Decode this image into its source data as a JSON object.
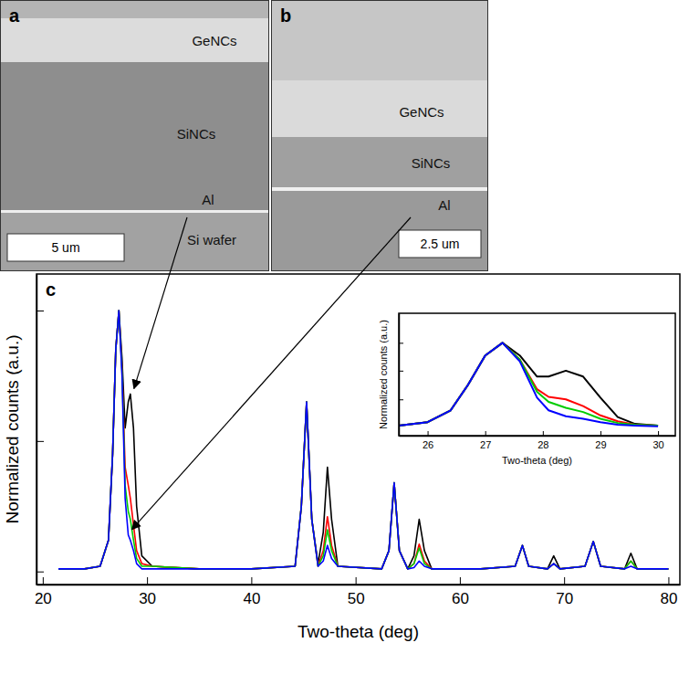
{
  "sem_images": [
    {
      "letter": "a",
      "layers": [
        "GeNCs",
        "SiNCs",
        "Al",
        "Si wafer"
      ],
      "scale_bar": "5 um"
    },
    {
      "letter": "b",
      "layers": [
        "GeNCs",
        "SiNCs",
        "Al"
      ],
      "scale_bar": "2.5 um"
    }
  ],
  "chart_data": [
    {
      "type": "line",
      "panel_label": "c",
      "x_label": "Two-theta (deg)",
      "y_label": "Normalized counts (a.u.)",
      "xlim": [
        19.4,
        81.1
      ],
      "xticks": [
        20,
        30,
        40,
        50,
        60,
        70,
        80
      ],
      "ylim": [
        -0.05,
        1.14
      ],
      "yticks": [
        0,
        0.5,
        1
      ],
      "tick_labels": "x",
      "x": [
        21.5,
        24,
        25.5,
        26.3,
        26.7,
        27.0,
        27.3,
        27.6,
        27.9,
        28.2,
        28.4,
        28.7,
        29.0,
        29.5,
        30.5,
        35,
        40,
        44.2,
        44.8,
        45.3,
        45.8,
        46.4,
        46.9,
        47.3,
        47.7,
        48.3,
        52.5,
        53.2,
        53.7,
        54.2,
        55.0,
        55.6,
        56.1,
        56.6,
        57.3,
        62,
        65.3,
        66.0,
        66.6,
        68.4,
        69.0,
        69.6,
        72.0,
        72.8,
        73.5,
        75.8,
        76.4,
        77.0,
        80
      ],
      "series": [
        {
          "color": "#000000",
          "values": [
            0.01,
            0.01,
            0.02,
            0.12,
            0.45,
            0.85,
            1.0,
            0.82,
            0.55,
            0.65,
            0.68,
            0.55,
            0.25,
            0.06,
            0.02,
            0.01,
            0.01,
            0.02,
            0.25,
            0.65,
            0.2,
            0.03,
            0.15,
            0.4,
            0.2,
            0.02,
            0.01,
            0.08,
            0.34,
            0.08,
            0.01,
            0.06,
            0.2,
            0.08,
            0.01,
            0.01,
            0.02,
            0.1,
            0.02,
            0.01,
            0.06,
            0.01,
            0.02,
            0.115,
            0.02,
            0.01,
            0.07,
            0.01,
            0.01
          ]
        },
        {
          "color": "#ff0000",
          "values": [
            0.01,
            0.01,
            0.02,
            0.12,
            0.45,
            0.85,
            1.0,
            0.78,
            0.4,
            0.33,
            0.28,
            0.18,
            0.08,
            0.03,
            0.02,
            0.01,
            0.01,
            0.02,
            0.25,
            0.65,
            0.2,
            0.02,
            0.08,
            0.21,
            0.1,
            0.02,
            0.01,
            0.08,
            0.34,
            0.08,
            0.01,
            0.03,
            0.105,
            0.04,
            0.01,
            0.01,
            0.02,
            0.1,
            0.02,
            0.01,
            0.03,
            0.01,
            0.02,
            0.115,
            0.02,
            0.01,
            0.04,
            0.01,
            0.01
          ]
        },
        {
          "color": "#00cc00",
          "values": [
            0.01,
            0.01,
            0.02,
            0.12,
            0.45,
            0.85,
            1.0,
            0.77,
            0.33,
            0.23,
            0.2,
            0.12,
            0.05,
            0.02,
            0.02,
            0.01,
            0.01,
            0.02,
            0.25,
            0.65,
            0.2,
            0.02,
            0.06,
            0.16,
            0.08,
            0.02,
            0.01,
            0.08,
            0.34,
            0.08,
            0.01,
            0.03,
            0.09,
            0.03,
            0.01,
            0.01,
            0.02,
            0.1,
            0.02,
            0.01,
            0.03,
            0.01,
            0.02,
            0.115,
            0.02,
            0.01,
            0.04,
            0.01,
            0.01
          ]
        },
        {
          "color": "#0000ff",
          "values": [
            0.01,
            0.01,
            0.02,
            0.12,
            0.45,
            0.85,
            1.0,
            0.75,
            0.28,
            0.14,
            0.12,
            0.08,
            0.03,
            0.01,
            0.01,
            0.01,
            0.01,
            0.02,
            0.25,
            0.65,
            0.2,
            0.02,
            0.04,
            0.1,
            0.05,
            0.02,
            0.01,
            0.08,
            0.34,
            0.08,
            0.01,
            0.015,
            0.04,
            0.02,
            0.01,
            0.01,
            0.02,
            0.1,
            0.02,
            0.01,
            0.03,
            0.01,
            0.02,
            0.115,
            0.02,
            0.01,
            0.02,
            0.01,
            0.01
          ]
        }
      ]
    },
    {
      "type": "line",
      "x_label": "Two-theta (deg)",
      "y_label": "Normalized counts (a.u.)",
      "xlim": [
        25.5,
        30.3
      ],
      "xticks": [
        26,
        27,
        28,
        29,
        30
      ],
      "ylim": [
        -0.1,
        1.35
      ],
      "yticks": [
        0.33,
        0.67,
        1.0
      ],
      "tick_labels": "x",
      "x": [
        25.5,
        26.0,
        26.4,
        26.7,
        27.0,
        27.3,
        27.6,
        27.9,
        28.1,
        28.4,
        28.7,
        29.0,
        29.3,
        29.6,
        30.0
      ],
      "series": [
        {
          "color": "#000000",
          "values": [
            0.02,
            0.06,
            0.2,
            0.5,
            0.85,
            1.0,
            0.85,
            0.6,
            0.6,
            0.67,
            0.6,
            0.35,
            0.12,
            0.04,
            0.02
          ]
        },
        {
          "color": "#ff0000",
          "values": [
            0.02,
            0.06,
            0.2,
            0.5,
            0.85,
            1.0,
            0.8,
            0.45,
            0.36,
            0.33,
            0.25,
            0.14,
            0.07,
            0.03,
            0.02
          ]
        },
        {
          "color": "#00cc00",
          "values": [
            0.02,
            0.06,
            0.2,
            0.5,
            0.85,
            1.0,
            0.8,
            0.42,
            0.3,
            0.23,
            0.18,
            0.1,
            0.05,
            0.03,
            0.02
          ]
        },
        {
          "color": "#0000ff",
          "values": [
            0.02,
            0.06,
            0.2,
            0.5,
            0.85,
            1.0,
            0.78,
            0.35,
            0.2,
            0.13,
            0.1,
            0.06,
            0.03,
            0.02,
            0.01
          ]
        }
      ]
    }
  ]
}
